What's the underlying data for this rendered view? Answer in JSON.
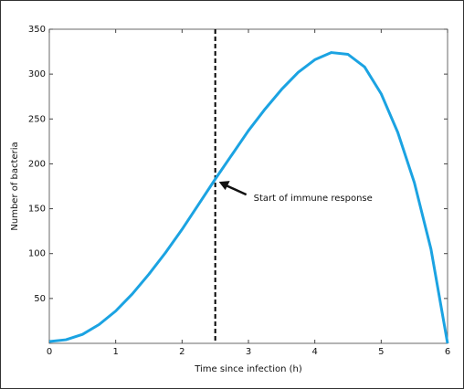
{
  "chart_data": {
    "type": "line",
    "xlabel": "Time since infection (h)",
    "ylabel": "Number of bacteria",
    "x": [
      0,
      0.25,
      0.5,
      0.75,
      1,
      1.25,
      1.5,
      1.75,
      2,
      2.25,
      2.5,
      2.75,
      3,
      3.25,
      3.5,
      3.75,
      4,
      4.25,
      4.5,
      4.75,
      5,
      5.25,
      5.5,
      5.75,
      6
    ],
    "series": [
      {
        "color": "#1ba3e2",
        "values": [
          2,
          4,
          10,
          21,
          36,
          55,
          77,
          101,
          127,
          155,
          183,
          210,
          237,
          261,
          283,
          302,
          316,
          324,
          322,
          308,
          278,
          235,
          179,
          105,
          0
        ]
      }
    ],
    "xlim": [
      0,
      6
    ],
    "xticks": [
      0,
      1,
      2,
      3,
      4,
      5,
      6
    ],
    "ylim": [
      0,
      350
    ],
    "yticks": [
      50,
      100,
      150,
      200,
      250,
      300,
      350
    ],
    "vline": 2.5,
    "annotation": "Start of immune response"
  }
}
